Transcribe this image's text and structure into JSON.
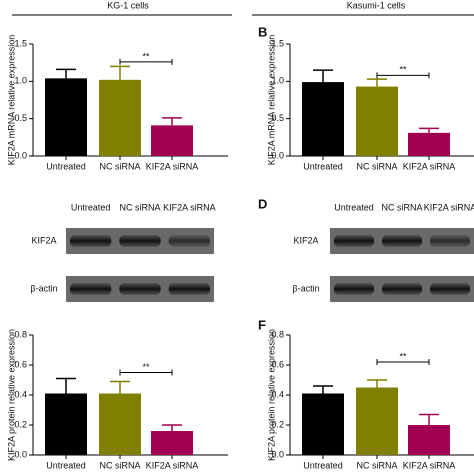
{
  "headers": [
    "KG-1 cells",
    "Kasumi-1 cells"
  ],
  "blots": [
    {
      "panel_label": null,
      "lanes": [
        "Untreated",
        "NC siRNA",
        "KIF2A siRNA"
      ],
      "rows": [
        "KIF2A",
        "β-actin"
      ]
    },
    {
      "panel_label": "D",
      "lanes": [
        "Untreated",
        "NC siRNA",
        "KIF2A siRNA"
      ],
      "rows": [
        "KIF2A",
        "β-actin"
      ]
    }
  ],
  "chart_data": [
    {
      "type": "bar",
      "panel_label": null,
      "ylabel": "KIF2A mRNA relative expression",
      "categories": [
        "Untreated",
        "NC siRNA",
        "KIF2A siRNA"
      ],
      "values": [
        1.04,
        1.02,
        0.41
      ],
      "errors": [
        0.12,
        0.18,
        0.1
      ],
      "colors": [
        "#000000",
        "#808000",
        "#a0004f"
      ],
      "ylim": [
        0,
        1.5
      ],
      "yticks": [
        {
          "value": 0,
          "label": "0.0"
        },
        {
          "value": 0.5,
          "label": "0.5"
        },
        {
          "value": 1,
          "label": "1.0"
        },
        {
          "value": 1.5,
          "label": "1.5"
        }
      ],
      "annotation": {
        "text": "**",
        "from": 1,
        "to": 2,
        "y": 1.26
      }
    },
    {
      "type": "bar",
      "panel_label": "B",
      "ylabel": "KIF2A mRNA relative expression",
      "categories": [
        "Untreated",
        "NC siRNA",
        "KIF2A siRNA"
      ],
      "values": [
        0.99,
        0.93,
        0.31
      ],
      "errors": [
        0.16,
        0.1,
        0.06
      ],
      "colors": [
        "#000000",
        "#808000",
        "#a0004f"
      ],
      "ylim": [
        0,
        1.5
      ],
      "yticks": [
        {
          "value": 0,
          "label": "0.0"
        },
        {
          "value": 0.5,
          "label": "0.5"
        },
        {
          "value": 1,
          "label": "1.0"
        },
        {
          "value": 1.5,
          "label": "1.5"
        }
      ],
      "annotation": {
        "text": "**",
        "from": 1,
        "to": 2,
        "y": 1.08
      }
    },
    {
      "type": "bar",
      "panel_label": null,
      "ylabel": "KIF2A protein relative expression",
      "categories": [
        "Untreated",
        "NC siRNA",
        "KIF2A siRNA"
      ],
      "values": [
        0.41,
        0.41,
        0.16
      ],
      "errors": [
        0.1,
        0.08,
        0.04
      ],
      "colors": [
        "#000000",
        "#808000",
        "#a0004f"
      ],
      "ylim": [
        0,
        0.8
      ],
      "yticks": [
        {
          "value": 0,
          "label": "0.0"
        },
        {
          "value": 0.2,
          "label": "0.2"
        },
        {
          "value": 0.4,
          "label": "0.4"
        },
        {
          "value": 0.6,
          "label": "0.6"
        },
        {
          "value": 0.8,
          "label": "0.8"
        }
      ],
      "annotation": {
        "text": "**",
        "from": 1,
        "to": 2,
        "y": 0.55
      }
    },
    {
      "type": "bar",
      "panel_label": "F",
      "ylabel": "KIF2A protein relative expression",
      "categories": [
        "Untreated",
        "NC siRNA",
        "KIF2A siRNA"
      ],
      "values": [
        0.41,
        0.45,
        0.2
      ],
      "errors": [
        0.05,
        0.05,
        0.07
      ],
      "colors": [
        "#000000",
        "#808000",
        "#a0004f"
      ],
      "ylim": [
        0,
        0.8
      ],
      "yticks": [
        {
          "value": 0,
          "label": "0.0"
        },
        {
          "value": 0.2,
          "label": "0.2"
        },
        {
          "value": 0.4,
          "label": "0.4"
        },
        {
          "value": 0.6,
          "label": "0.6"
        },
        {
          "value": 0.8,
          "label": "0.8"
        }
      ],
      "annotation": {
        "text": "**",
        "from": 1,
        "to": 2,
        "y": 0.62
      }
    }
  ]
}
